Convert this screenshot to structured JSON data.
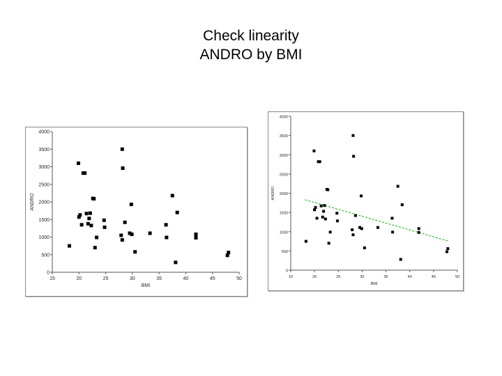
{
  "title": {
    "line1": "Check linearity",
    "line2": "ANDRO by BMI"
  },
  "colors": {
    "point": "#000000",
    "fit_line": "#22bb22",
    "axis": "#555555"
  },
  "chart_data": [
    {
      "type": "scatter",
      "xlabel": "BMI",
      "ylabel": "ANDRO",
      "xlim": [
        15,
        50
      ],
      "ylim": [
        0,
        4000
      ],
      "xticks": [
        "15",
        "20",
        "25",
        "30",
        "35",
        "40",
        "45",
        "50"
      ],
      "yticks": [
        "0",
        "500",
        "1000",
        "1500",
        "2000",
        "2500",
        "3000",
        "3500",
        "4000"
      ],
      "points": [
        [
          18.2,
          750
        ],
        [
          19.9,
          3100
        ],
        [
          20.0,
          1570
        ],
        [
          20.2,
          1630
        ],
        [
          20.5,
          1350
        ],
        [
          20.8,
          2820
        ],
        [
          21.1,
          2820
        ],
        [
          21.4,
          1670
        ],
        [
          21.7,
          1380
        ],
        [
          21.9,
          1530
        ],
        [
          22.1,
          1680
        ],
        [
          22.3,
          1330
        ],
        [
          22.6,
          2100
        ],
        [
          22.8,
          2090
        ],
        [
          23.0,
          700
        ],
        [
          23.3,
          990
        ],
        [
          24.7,
          1480
        ],
        [
          24.8,
          1280
        ],
        [
          27.9,
          1050
        ],
        [
          28.1,
          3500
        ],
        [
          28.1,
          920
        ],
        [
          28.2,
          2960
        ],
        [
          28.6,
          1420
        ],
        [
          29.5,
          1110
        ],
        [
          29.8,
          1930
        ],
        [
          29.9,
          1080
        ],
        [
          30.5,
          580
        ],
        [
          33.3,
          1110
        ],
        [
          36.3,
          1350
        ],
        [
          36.4,
          990
        ],
        [
          37.5,
          2180
        ],
        [
          38.1,
          280
        ],
        [
          38.4,
          1700
        ],
        [
          41.9,
          1080
        ],
        [
          41.9,
          980
        ],
        [
          47.8,
          480
        ],
        [
          48.0,
          560
        ]
      ]
    },
    {
      "type": "scatter",
      "xlabel": "BMI",
      "ylabel": "ANDRO",
      "xlim": [
        15,
        50
      ],
      "ylim": [
        0,
        4000
      ],
      "xticks": [
        "15",
        "20",
        "25",
        "30",
        "35",
        "40",
        "45",
        "50"
      ],
      "yticks": [
        "0",
        "500",
        "1000",
        "1500",
        "2000",
        "2500",
        "3000",
        "3500",
        "4000"
      ],
      "points": [
        [
          18.2,
          750
        ],
        [
          19.9,
          3100
        ],
        [
          20.0,
          1570
        ],
        [
          20.2,
          1630
        ],
        [
          20.5,
          1350
        ],
        [
          20.8,
          2820
        ],
        [
          21.1,
          2820
        ],
        [
          21.4,
          1670
        ],
        [
          21.7,
          1380
        ],
        [
          21.9,
          1530
        ],
        [
          22.1,
          1680
        ],
        [
          22.3,
          1330
        ],
        [
          22.6,
          2100
        ],
        [
          22.8,
          2090
        ],
        [
          23.0,
          700
        ],
        [
          23.3,
          990
        ],
        [
          24.7,
          1480
        ],
        [
          24.8,
          1280
        ],
        [
          27.9,
          1050
        ],
        [
          28.1,
          3500
        ],
        [
          28.1,
          920
        ],
        [
          28.2,
          2960
        ],
        [
          28.6,
          1420
        ],
        [
          29.5,
          1110
        ],
        [
          29.8,
          1930
        ],
        [
          29.9,
          1080
        ],
        [
          30.5,
          580
        ],
        [
          33.3,
          1110
        ],
        [
          36.3,
          1350
        ],
        [
          36.4,
          990
        ],
        [
          37.5,
          2180
        ],
        [
          38.1,
          280
        ],
        [
          38.4,
          1700
        ],
        [
          41.9,
          1080
        ],
        [
          41.9,
          980
        ],
        [
          47.8,
          480
        ],
        [
          48.0,
          560
        ]
      ],
      "fit_line": [
        [
          18,
          1830
        ],
        [
          48,
          760
        ]
      ]
    }
  ]
}
